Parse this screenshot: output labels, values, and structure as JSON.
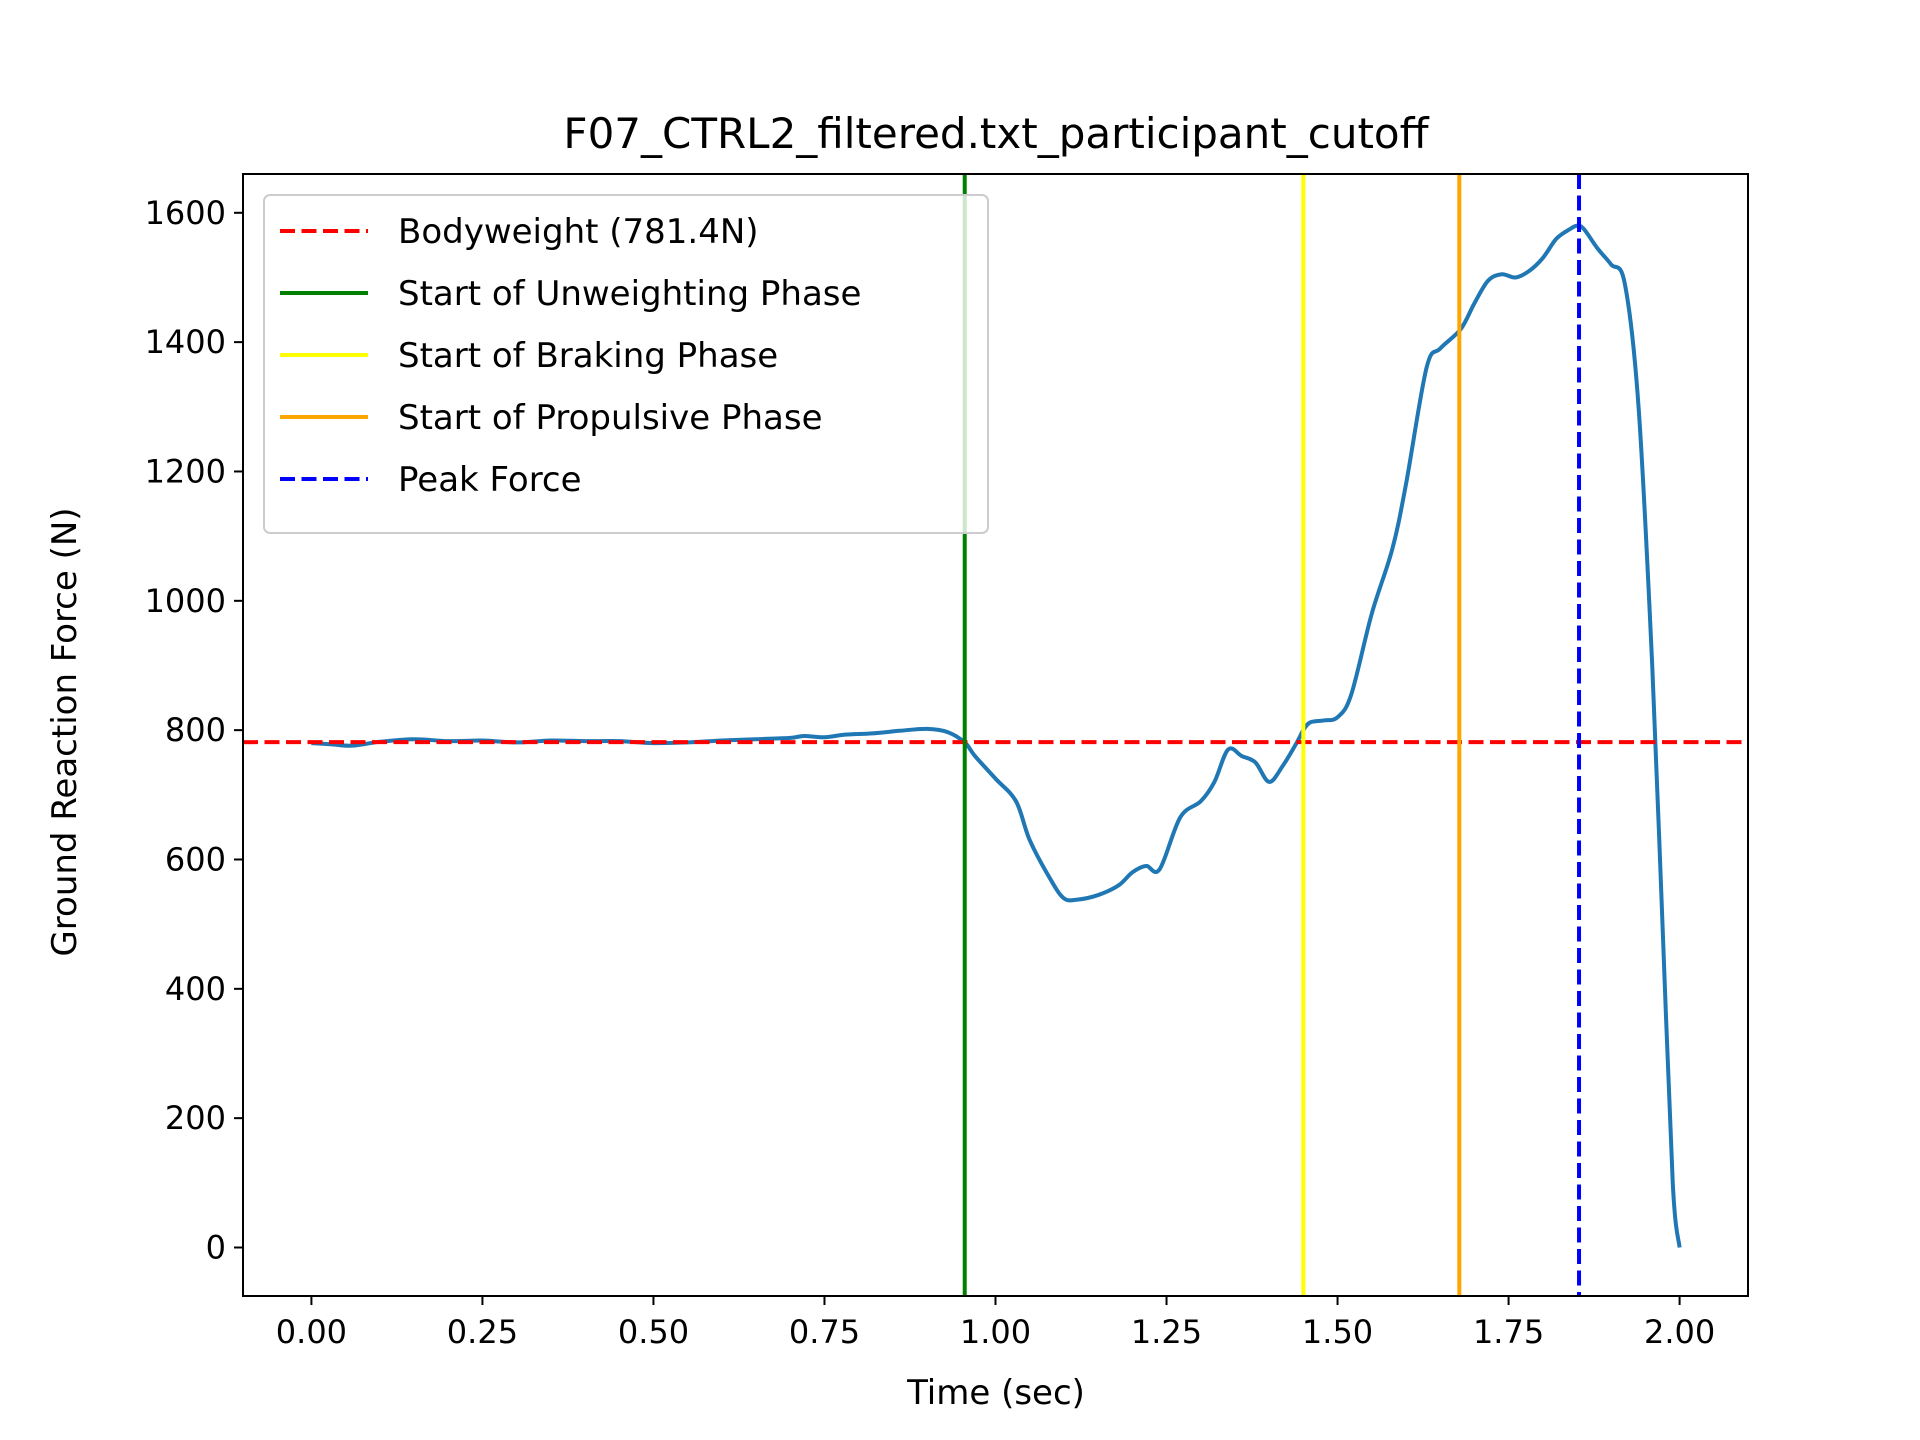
{
  "chart_data": {
    "type": "line",
    "title": "F07_CTRL2_filtered.txt_participant_cutoff",
    "xlabel": "Time (sec)",
    "ylabel": "Ground Reaction Force (N)",
    "xlim": [
      -0.1,
      2.1
    ],
    "ylim": [
      -75,
      1660
    ],
    "xticks": [
      0.0,
      0.25,
      0.5,
      0.75,
      1.0,
      1.25,
      1.5,
      1.75,
      2.0
    ],
    "xtick_labels": [
      "0.00",
      "0.25",
      "0.50",
      "0.75",
      "1.00",
      "1.25",
      "1.50",
      "1.75",
      "2.00"
    ],
    "yticks": [
      0,
      200,
      400,
      600,
      800,
      1000,
      1200,
      1400,
      1600
    ],
    "ytick_labels": [
      "0",
      "200",
      "400",
      "600",
      "800",
      "1000",
      "1200",
      "1400",
      "1600"
    ],
    "grid": false,
    "legend_position": "upper-left",
    "series": [
      {
        "color": "#1f77b4",
        "x": [
          0.0,
          0.03,
          0.06,
          0.1,
          0.15,
          0.2,
          0.25,
          0.3,
          0.35,
          0.4,
          0.45,
          0.5,
          0.55,
          0.6,
          0.65,
          0.7,
          0.72,
          0.75,
          0.78,
          0.82,
          0.86,
          0.9,
          0.93,
          0.955,
          0.97,
          1.0,
          1.03,
          1.05,
          1.08,
          1.1,
          1.12,
          1.15,
          1.18,
          1.2,
          1.22,
          1.24,
          1.27,
          1.3,
          1.32,
          1.34,
          1.36,
          1.38,
          1.4,
          1.42,
          1.44,
          1.45,
          1.46,
          1.48,
          1.5,
          1.52,
          1.55,
          1.58,
          1.6,
          1.63,
          1.65,
          1.68,
          1.7,
          1.72,
          1.74,
          1.76,
          1.78,
          1.8,
          1.82,
          1.84,
          1.85,
          1.86,
          1.88,
          1.9,
          1.92,
          1.94,
          1.96,
          1.975,
          1.99,
          2.0
        ],
        "y": [
          780,
          778,
          776,
          782,
          786,
          783,
          784,
          781,
          784,
          783,
          783,
          780,
          781,
          784,
          786,
          788,
          791,
          789,
          793,
          795,
          799,
          802,
          797,
          781,
          760,
          725,
          690,
          630,
          570,
          540,
          538,
          545,
          560,
          580,
          590,
          585,
          665,
          690,
          720,
          770,
          760,
          750,
          720,
          745,
          780,
          800,
          812,
          815,
          820,
          855,
          980,
          1080,
          1180,
          1360,
          1390,
          1420,
          1460,
          1495,
          1505,
          1500,
          1510,
          1530,
          1560,
          1575,
          1580,
          1575,
          1545,
          1520,
          1490,
          1300,
          900,
          500,
          100,
          0
        ]
      }
    ],
    "reference_lines": [
      {
        "orientation": "horizontal",
        "value": 781.4,
        "color": "#ff0000",
        "style": "dashed",
        "label": "Bodyweight (781.4N)"
      },
      {
        "orientation": "vertical",
        "value": 0.955,
        "color": "#008000",
        "style": "solid",
        "label": "Start of Unweighting Phase"
      },
      {
        "orientation": "vertical",
        "value": 1.45,
        "color": "#ffff00",
        "style": "solid",
        "label": "Start of Braking Phase"
      },
      {
        "orientation": "vertical",
        "value": 1.678,
        "color": "#ffa500",
        "style": "solid",
        "label": "Start of Propulsive Phase"
      },
      {
        "orientation": "vertical",
        "value": 1.853,
        "color": "#0000ff",
        "style": "dashed",
        "label": "Peak Force"
      }
    ]
  }
}
